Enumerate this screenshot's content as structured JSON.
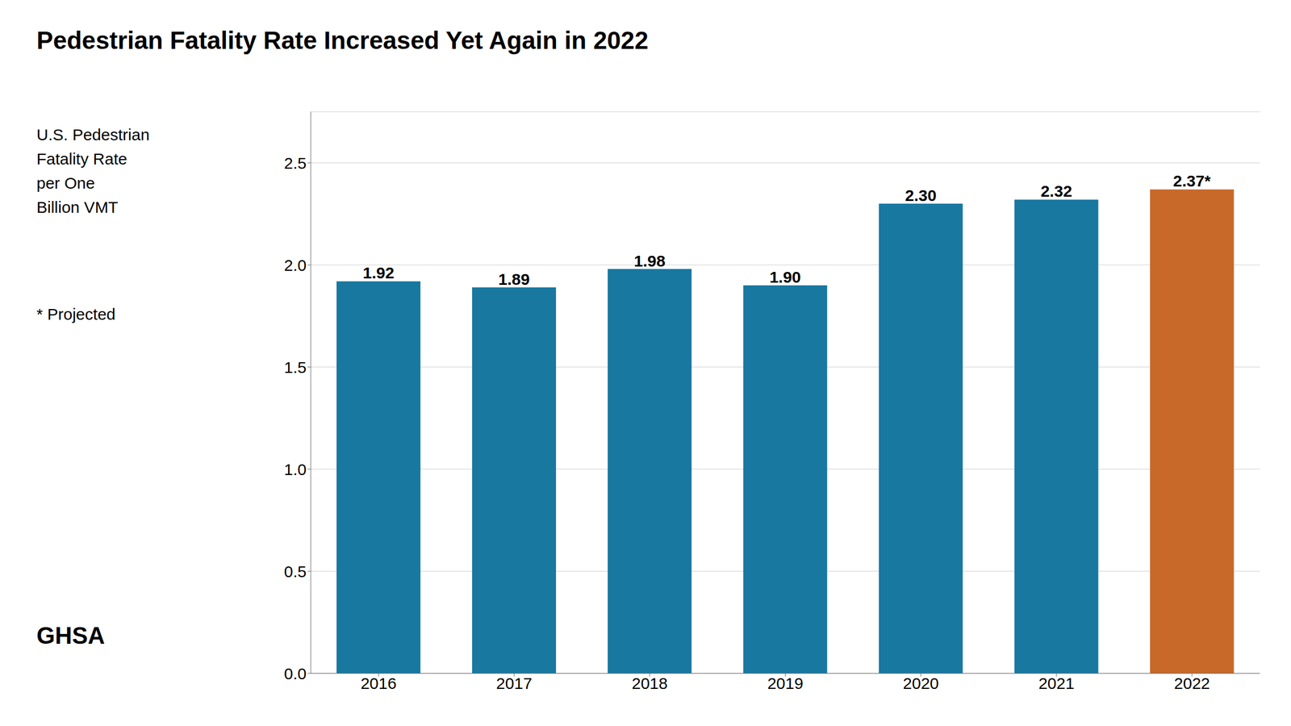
{
  "chart_data": {
    "type": "bar",
    "title": "Pedestrian Fatality Rate Increased Yet Again in 2022",
    "ylabel": [
      "U.S. Pedestrian",
      "Fatality Rate",
      "per One",
      "Billion VMT"
    ],
    "annotations": [
      "* Projected",
      "GHSA"
    ],
    "categories": [
      "2016",
      "2017",
      "2018",
      "2019",
      "2020",
      "2021",
      "2022"
    ],
    "values": [
      1.92,
      1.89,
      1.98,
      1.9,
      2.3,
      2.32,
      2.37
    ],
    "value_labels": [
      "1.92",
      "1.89",
      "1.98",
      "1.90",
      "2.30",
      "2.32",
      "2.37*"
    ],
    "data_labels": true,
    "colors": [
      "#1878a0",
      "#1878a0",
      "#1878a0",
      "#1878a0",
      "#1878a0",
      "#1878a0",
      "#c8692a"
    ],
    "ylim": [
      0,
      2.75
    ],
    "yticks": [
      {
        "value": 0.0,
        "label": "0.0"
      },
      0.5,
      {
        "value": 1.0,
        "label": "1.0"
      },
      1.5,
      {
        "value": 2.0,
        "label": "2.0"
      },
      2.5
    ],
    "grid": true
  }
}
